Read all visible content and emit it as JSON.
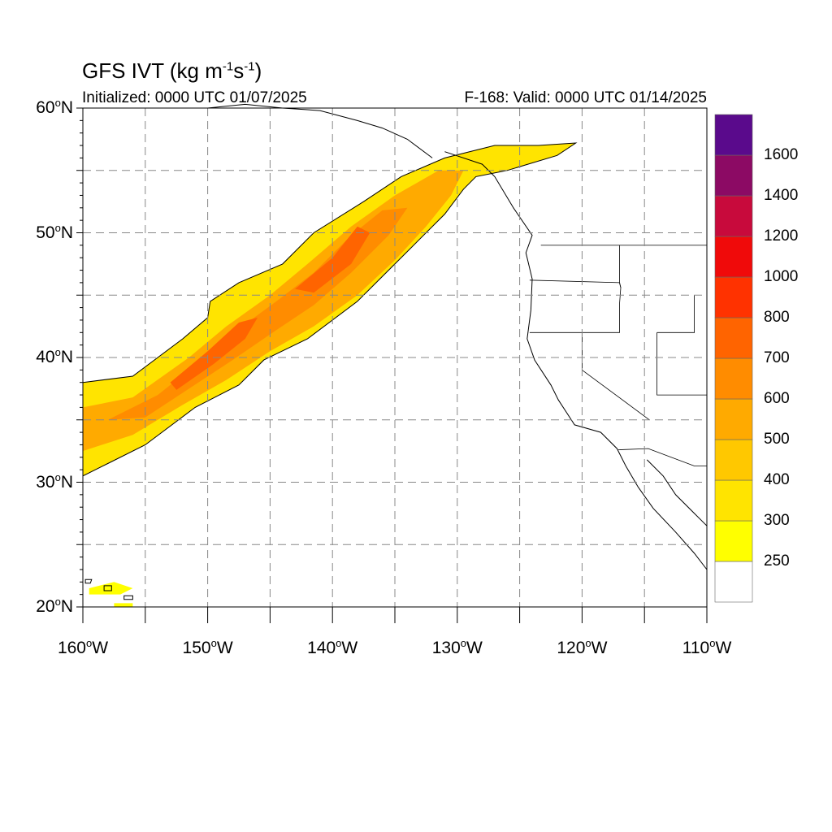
{
  "title": {
    "main": "GFS IVT (kg m",
    "unit_exp1": "-1",
    "mid": "s",
    "unit_exp2": "-1",
    "end": ")"
  },
  "subtitle": {
    "initialized": "Initialized: 0000 UTC 01/07/2025",
    "valid": "F-168: Valid: 0000 UTC 01/14/2025"
  },
  "map": {
    "projection": "cylindrical equidistant",
    "lon_range": [
      -160,
      -110
    ],
    "lat_range": [
      20,
      60
    ],
    "grid": "dashed, every 5 degrees",
    "ocean_color": "#ffffff",
    "coast_color": "#000000"
  },
  "lat_ticks": [
    {
      "value": 60,
      "text": "60",
      "suffix": "N"
    },
    {
      "value": 50,
      "text": "50",
      "suffix": "N"
    },
    {
      "value": 40,
      "text": "40",
      "suffix": "N"
    },
    {
      "value": 30,
      "text": "30",
      "suffix": "N"
    },
    {
      "value": 20,
      "text": "20",
      "suffix": "N"
    }
  ],
  "lon_ticks": [
    {
      "value": -160,
      "text": "160",
      "suffix": "W"
    },
    {
      "value": -150,
      "text": "150",
      "suffix": "W"
    },
    {
      "value": -140,
      "text": "140",
      "suffix": "W"
    },
    {
      "value": -130,
      "text": "130",
      "suffix": "W"
    },
    {
      "value": -120,
      "text": "120",
      "suffix": "W"
    },
    {
      "value": -110,
      "text": "110",
      "suffix": "W"
    }
  ],
  "colorbar": {
    "levels": [
      "250",
      "300",
      "400",
      "500",
      "600",
      "700",
      "800",
      "1000",
      "1200",
      "1400",
      "1600"
    ],
    "colors": [
      "#ffffff",
      "#ffff00",
      "#ffe400",
      "#ffc800",
      "#ffaa00",
      "#ff8c00",
      "#ff6400",
      "#ff3200",
      "#f00a0a",
      "#c80a3c",
      "#8c0a64",
      "#5a0a8c"
    ]
  },
  "river": {
    "description_levels": [
      250,
      400,
      600,
      800
    ],
    "outer": [
      [
        -160,
        38.0
      ],
      [
        -156,
        38.5
      ],
      [
        -152,
        41.5
      ],
      [
        -150,
        43.2
      ],
      [
        -149.8,
        44.5
      ],
      [
        -147.5,
        46.0
      ],
      [
        -144,
        47.5
      ],
      [
        -141.5,
        50.0
      ],
      [
        -137.5,
        52.5
      ],
      [
        -134.5,
        54.5
      ],
      [
        -131,
        56.0
      ],
      [
        -127,
        57.0
      ],
      [
        -123.5,
        57.0
      ],
      [
        -120.5,
        57.2
      ],
      [
        -122,
        56.2
      ],
      [
        -126,
        55.0
      ],
      [
        -128.5,
        54.5
      ],
      [
        -129.5,
        53.5
      ],
      [
        -131,
        51.5
      ],
      [
        -133,
        49.5
      ],
      [
        -135,
        47.5
      ],
      [
        -138,
        44.5
      ],
      [
        -142,
        41.5
      ],
      [
        -145.5,
        39.8
      ],
      [
        -147.5,
        37.8
      ],
      [
        -151,
        36.0
      ],
      [
        -155,
        33.0
      ],
      [
        -158,
        31.5
      ],
      [
        -160,
        30.5
      ]
    ],
    "band400": [
      [
        -160,
        36.0
      ],
      [
        -156,
        36.8
      ],
      [
        -151.5,
        40.0
      ],
      [
        -148.5,
        42.5
      ],
      [
        -145,
        45.0
      ],
      [
        -142,
        47.5
      ],
      [
        -138.5,
        50.5
      ],
      [
        -135,
        53.0
      ],
      [
        -131.5,
        55.0
      ],
      [
        -129.5,
        55.0
      ],
      [
        -130.5,
        53.0
      ],
      [
        -132.5,
        50.5
      ],
      [
        -135,
        47.8
      ],
      [
        -138,
        45.0
      ],
      [
        -141.5,
        42.5
      ],
      [
        -145,
        40.5
      ],
      [
        -148.5,
        38.2
      ],
      [
        -152,
        36.2
      ],
      [
        -156,
        33.8
      ],
      [
        -160,
        32.5
      ]
    ],
    "band600": [
      [
        -158,
        35.0
      ],
      [
        -154,
        37.0
      ],
      [
        -150.5,
        39.8
      ],
      [
        -147.5,
        42.3
      ],
      [
        -144.5,
        44.5
      ],
      [
        -141.5,
        46.8
      ],
      [
        -138.5,
        49.8
      ],
      [
        -136,
        51.8
      ],
      [
        -134,
        52.0
      ],
      [
        -135.5,
        49.8
      ],
      [
        -138.5,
        46.8
      ],
      [
        -141.5,
        44.2
      ],
      [
        -144.5,
        42.2
      ],
      [
        -148,
        39.8
      ],
      [
        -151.5,
        37.5
      ],
      [
        -155,
        35.2
      ]
    ],
    "band800": [
      [
        -153,
        38.0
      ],
      [
        -150,
        40.5
      ],
      [
        -147.5,
        42.8
      ],
      [
        -146,
        43.2
      ],
      [
        -147,
        41.5
      ],
      [
        -149.5,
        39.5
      ],
      [
        -152.5,
        37.4
      ]
    ],
    "band800b": [
      [
        -143,
        45.5
      ],
      [
        -140,
        48.0
      ],
      [
        -138,
        50.5
      ],
      [
        -137,
        50.0
      ],
      [
        -138.5,
        47.5
      ],
      [
        -141.5,
        45.2
      ]
    ]
  }
}
